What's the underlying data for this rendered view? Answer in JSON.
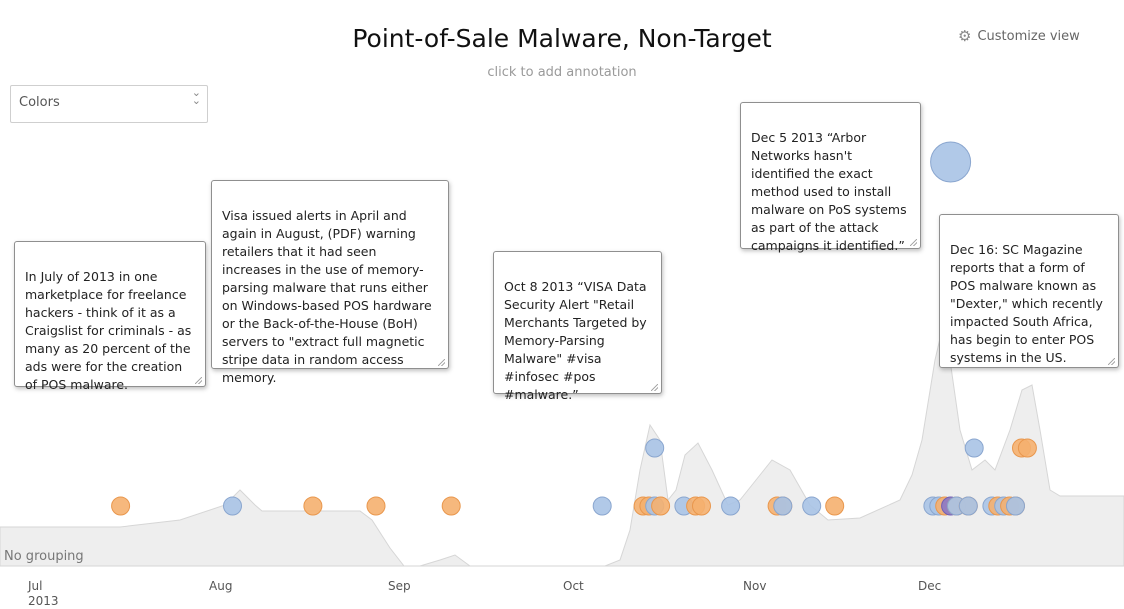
{
  "header": {
    "title": "Point-of-Sale Malware, Non-Target",
    "subtitle": "click to add annotation",
    "customize_label": "Customize view",
    "colors_label": "Colors"
  },
  "annotations": [
    {
      "text": "In July of 2013 in one marketplace for freelance hackers - think of it as a Craigslist for criminals - as many as 20 percent of the ads were for the creation of POS malware."
    },
    {
      "text": "Visa issued alerts in April and again in August, (PDF) warning retailers that it had seen increases in the use of memory-parsing malware that runs either on Windows-based POS hardware or the Back-of-the-House (BoH) servers to \"extract full magnetic stripe data in random access memory."
    },
    {
      "text": "Oct 8 2013 “VISA Data Security Alert \"Retail Merchants Targeted by Memory-Parsing Malware\" #visa #infosec #pos #malware.”"
    },
    {
      "text": "Dec 5 2013 “Arbor Networks hasn't identified the exact method used to install malware on PoS systems as part of the attack campaigns it identified.”"
    },
    {
      "text": "Dec 16: SC Magazine reports that a form of POS malware known as \"Dexter,\" which recently impacted South Africa, has begin to enter POS systems in the US."
    }
  ],
  "grouping_label": "No grouping",
  "colors": {
    "orange": "#f5b06f",
    "blue": "#a9c3e6",
    "purple": "#8a78c8",
    "density_fill": "#eeeeee",
    "density_stroke": "#d6d6d6"
  },
  "icons": {
    "customize": "gear-icon",
    "colors_dropdown": "chevron-down-icon"
  },
  "chart_data": {
    "type": "scatter",
    "x_axis_labels": [
      "Jul",
      "Aug",
      "Sep",
      "Oct",
      "Nov",
      "Dec"
    ],
    "year_label": "2013",
    "events": [
      {
        "date": "2013-07-15",
        "color": "orange",
        "size": "normal"
      },
      {
        "date": "2013-08-03",
        "color": "blue",
        "size": "normal"
      },
      {
        "date": "2013-08-17",
        "color": "orange",
        "size": "normal"
      },
      {
        "date": "2013-08-28",
        "color": "orange",
        "size": "normal"
      },
      {
        "date": "2013-09-10",
        "color": "orange",
        "size": "normal"
      },
      {
        "date": "2013-10-06",
        "color": "blue",
        "size": "normal"
      },
      {
        "date": "2013-10-13",
        "color": "orange",
        "size": "normal"
      },
      {
        "date": "2013-10-14",
        "color": "orange",
        "size": "normal"
      },
      {
        "date": "2013-10-15",
        "color": "blue",
        "size": "normal"
      },
      {
        "date": "2013-10-15",
        "color": "blue",
        "size": "normal",
        "stack": 1
      },
      {
        "date": "2013-10-16",
        "color": "orange",
        "size": "normal"
      },
      {
        "date": "2013-10-20",
        "color": "blue",
        "size": "normal"
      },
      {
        "date": "2013-10-22",
        "color": "orange",
        "size": "normal"
      },
      {
        "date": "2013-10-23",
        "color": "orange",
        "size": "normal"
      },
      {
        "date": "2013-10-28",
        "color": "blue",
        "size": "normal"
      },
      {
        "date": "2013-11-05",
        "color": "orange",
        "size": "normal"
      },
      {
        "date": "2013-11-06",
        "color": "orange",
        "size": "normal"
      },
      {
        "date": "2013-11-06",
        "color": "blue",
        "size": "normal"
      },
      {
        "date": "2013-11-11",
        "color": "blue",
        "size": "normal"
      },
      {
        "date": "2013-11-15",
        "color": "orange",
        "size": "normal"
      },
      {
        "date": "2013-12-02",
        "color": "blue",
        "size": "normal"
      },
      {
        "date": "2013-12-03",
        "color": "blue",
        "size": "normal"
      },
      {
        "date": "2013-12-04",
        "color": "orange",
        "size": "normal"
      },
      {
        "date": "2013-12-05",
        "color": "purple",
        "size": "normal"
      },
      {
        "date": "2013-12-05",
        "color": "blue",
        "size": "large",
        "stack": 3
      },
      {
        "date": "2013-12-06",
        "color": "orange",
        "size": "normal"
      },
      {
        "date": "2013-12-06",
        "color": "blue",
        "size": "normal"
      },
      {
        "date": "2013-12-08",
        "color": "orange",
        "size": "normal"
      },
      {
        "date": "2013-12-08",
        "color": "blue",
        "size": "normal"
      },
      {
        "date": "2013-12-09",
        "color": "blue",
        "size": "normal",
        "stack": 1
      },
      {
        "date": "2013-12-12",
        "color": "blue",
        "size": "normal"
      },
      {
        "date": "2013-12-13",
        "color": "orange",
        "size": "normal"
      },
      {
        "date": "2013-12-14",
        "color": "blue",
        "size": "normal"
      },
      {
        "date": "2013-12-15",
        "color": "orange",
        "size": "normal"
      },
      {
        "date": "2013-12-16",
        "color": "orange",
        "size": "normal"
      },
      {
        "date": "2013-12-16",
        "color": "blue",
        "size": "normal"
      },
      {
        "date": "2013-12-17",
        "color": "orange",
        "size": "normal",
        "stack": 1
      },
      {
        "date": "2013-12-18",
        "color": "orange",
        "size": "normal",
        "stack": 1
      }
    ]
  }
}
